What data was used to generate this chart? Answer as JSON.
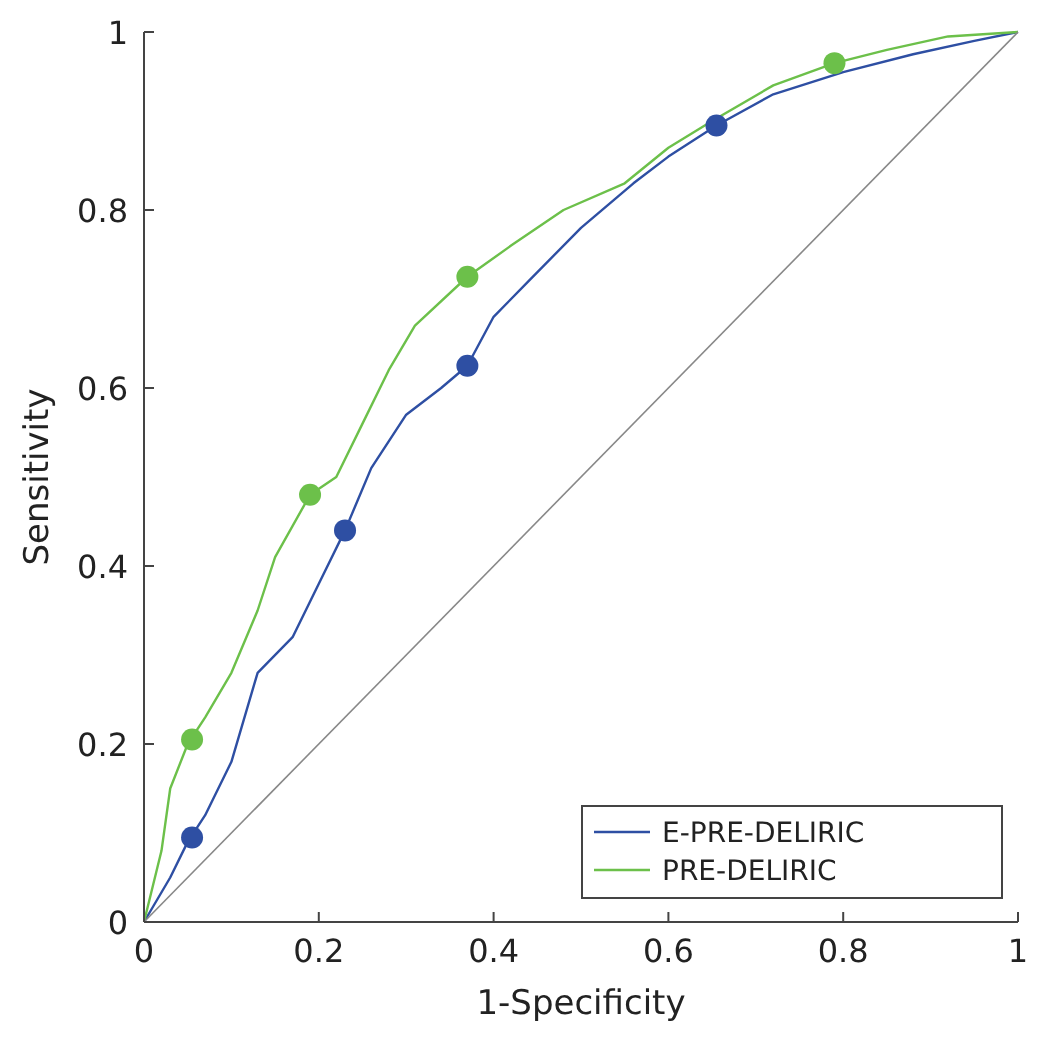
{
  "chart_data": {
    "type": "line",
    "xlabel": "1-Specificity",
    "ylabel": "Sensitivity",
    "xlim": [
      0,
      1
    ],
    "ylim": [
      0,
      1
    ],
    "xticks": [
      0,
      0.2,
      0.4,
      0.6,
      0.8,
      1
    ],
    "yticks": [
      0,
      0.2,
      0.4,
      0.6,
      0.8,
      1
    ],
    "grid": false,
    "legend": "bottom right",
    "marker": "none",
    "line_style": "solid",
    "series": [
      {
        "name": "E-PRE-DELIRIC",
        "color": "#2e4fa3",
        "x": [
          0,
          0.03,
          0.05,
          0.07,
          0.1,
          0.13,
          0.17,
          0.2,
          0.23,
          0.26,
          0.3,
          0.34,
          0.37,
          0.4,
          0.44,
          0.5,
          0.56,
          0.6,
          0.655,
          0.72,
          0.8,
          0.88,
          0.95,
          1
        ],
        "values": [
          0,
          0.05,
          0.09,
          0.12,
          0.18,
          0.28,
          0.32,
          0.38,
          0.44,
          0.51,
          0.57,
          0.6,
          0.625,
          0.68,
          0.72,
          0.78,
          0.83,
          0.86,
          0.895,
          0.93,
          0.955,
          0.975,
          0.99,
          1
        ]
      },
      {
        "name": "PRE-DELIRIC",
        "color": "#6cc04a",
        "x": [
          0,
          0.02,
          0.03,
          0.05,
          0.07,
          0.1,
          0.13,
          0.15,
          0.19,
          0.22,
          0.25,
          0.28,
          0.31,
          0.37,
          0.42,
          0.48,
          0.55,
          0.6,
          0.65,
          0.72,
          0.79,
          0.85,
          0.92,
          1
        ],
        "values": [
          0,
          0.08,
          0.15,
          0.2,
          0.23,
          0.28,
          0.35,
          0.41,
          0.48,
          0.5,
          0.56,
          0.62,
          0.67,
          0.725,
          0.76,
          0.8,
          0.83,
          0.87,
          0.9,
          0.94,
          0.965,
          0.98,
          0.995,
          1
        ]
      },
      {
        "color": "#888888",
        "x": [
          0,
          1
        ],
        "values": [
          0,
          1
        ]
      },
      {
        "type": "scatter",
        "marker": "circle",
        "color": "#2e4fa3",
        "x": [
          0.055,
          0.23,
          0.37,
          0.655
        ],
        "values": [
          0.095,
          0.44,
          0.625,
          0.895
        ]
      },
      {
        "type": "scatter",
        "marker": "circle",
        "color": "#6cc04a",
        "x": [
          0.055,
          0.19,
          0.37,
          0.79
        ],
        "values": [
          0.205,
          0.48,
          0.725,
          0.965
        ]
      }
    ]
  }
}
